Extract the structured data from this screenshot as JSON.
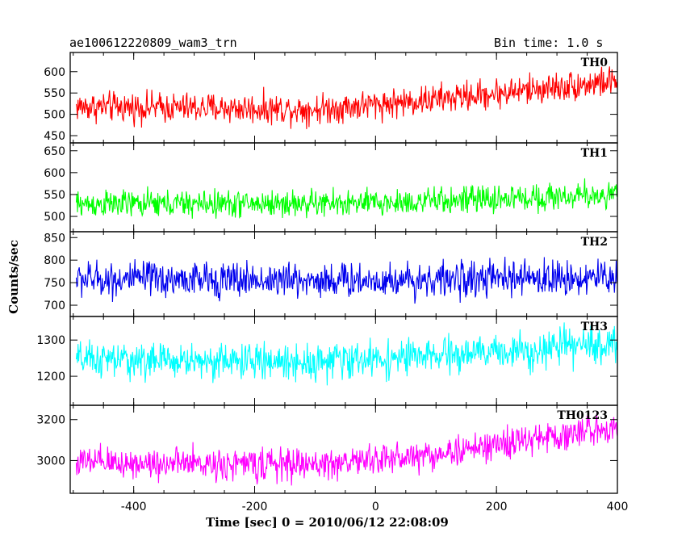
{
  "header": {
    "title_left": "ae100612220809_wam3_trn",
    "title_right": "Bin time: 1.0 s"
  },
  "ylabel": "Counts/sec",
  "xlabel": "Time [sec] 0 = 2010/06/12 22:08:09",
  "chart_data": {
    "type": "line",
    "x": {
      "range": [
        -505,
        400
      ],
      "start": -495,
      "step": 1.0,
      "ticks": [
        -400,
        -200,
        0,
        200,
        400
      ]
    },
    "panels": [
      {
        "name": "TH0",
        "color": "#ff0000",
        "ylim": [
          433,
          645
        ],
        "ticks": [
          450,
          500,
          550,
          600
        ],
        "trend": [
          [
            -495,
            518
          ],
          [
            -100,
            512
          ],
          [
            100,
            535
          ],
          [
            400,
            578
          ]
        ],
        "noise": 25
      },
      {
        "name": "TH1",
        "color": "#00ff00",
        "ylim": [
          465,
          668
        ],
        "ticks": [
          500,
          550,
          600,
          650
        ],
        "trend": [
          [
            -495,
            528
          ],
          [
            0,
            530
          ],
          [
            400,
            550
          ]
        ],
        "noise": 22
      },
      {
        "name": "TH2",
        "color": "#0000ee",
        "ylim": [
          675,
          863
        ],
        "ticks": [
          700,
          750,
          800,
          850
        ],
        "trend": [
          [
            -495,
            758
          ],
          [
            0,
            755
          ],
          [
            400,
            762
          ]
        ],
        "noise": 28
      },
      {
        "name": "TH3",
        "color": "#00ffff",
        "ylim": [
          1120,
          1365
        ],
        "ticks": [
          1200,
          1300
        ],
        "trend": [
          [
            -495,
            1245
          ],
          [
            -100,
            1240
          ],
          [
            100,
            1255
          ],
          [
            400,
            1290
          ]
        ],
        "noise": 35
      },
      {
        "name": "TH0123",
        "color": "#ff00ff",
        "ylim": [
          2840,
          3270
        ],
        "ticks": [
          3000,
          3200
        ],
        "trend": [
          [
            -495,
            2990
          ],
          [
            -100,
            2980
          ],
          [
            100,
            3030
          ],
          [
            400,
            3165
          ]
        ],
        "noise": 55
      }
    ]
  }
}
